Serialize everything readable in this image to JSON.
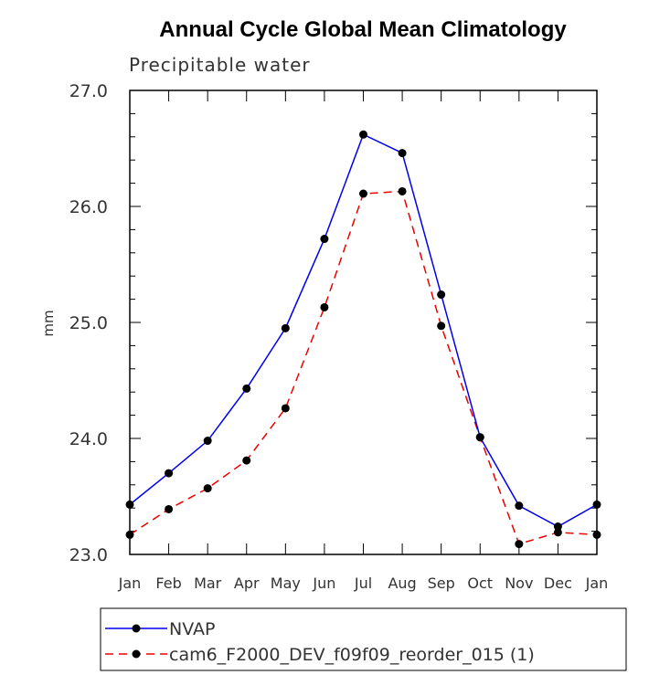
{
  "chart_data": {
    "type": "line",
    "title": "Annual Cycle Global Mean Climatology",
    "subtitle": "Precipitable water",
    "xlabel": "",
    "ylabel": "mm",
    "categories": [
      "Jan",
      "Feb",
      "Mar",
      "Apr",
      "May",
      "Jun",
      "Jul",
      "Aug",
      "Sep",
      "Oct",
      "Nov",
      "Dec",
      "Jan"
    ],
    "ylim": [
      23.0,
      27.0
    ],
    "yticks": [
      "23.0",
      "24.0",
      "25.0",
      "26.0",
      "27.0"
    ],
    "series": [
      {
        "name": "NVAP",
        "color": "#0000ee",
        "dash": "solid",
        "values": [
          23.43,
          23.7,
          23.98,
          24.43,
          24.95,
          25.72,
          26.62,
          26.46,
          25.24,
          24.01,
          23.42,
          23.24,
          23.43
        ]
      },
      {
        "name": "cam6_F2000_DEV_f09f09_reorder_015 (1)",
        "color": "#ee0000",
        "dash": "dashed",
        "values": [
          23.17,
          23.39,
          23.57,
          23.81,
          24.26,
          25.13,
          26.11,
          26.13,
          24.97,
          24.01,
          23.09,
          23.19,
          23.17
        ]
      }
    ],
    "legend_position": "bottom"
  }
}
